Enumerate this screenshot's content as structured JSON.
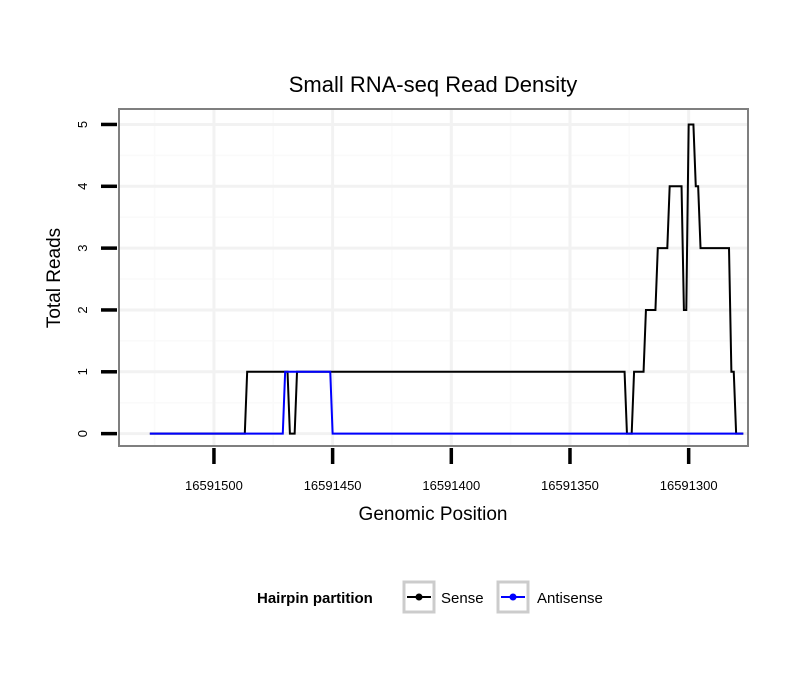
{
  "chart_data": {
    "type": "line",
    "title": "Small RNA-seq Read Density",
    "xlabel": "Genomic Position",
    "ylabel": "Total Reads",
    "x_reversed": true,
    "xlim": [
      16591540,
      16591275
    ],
    "ylim": [
      -0.2,
      5.25
    ],
    "x_ticks": [
      16591500,
      16591450,
      16591400,
      16591350,
      16591300
    ],
    "x_tick_labels": [
      "16591500",
      "16591450",
      "16591400",
      "16591350",
      "16591300"
    ],
    "y_ticks": [
      0,
      1,
      2,
      3,
      4,
      5
    ],
    "y_tick_labels": [
      "0",
      "1",
      "2",
      "3",
      "4",
      "5"
    ],
    "grid": true,
    "legend": {
      "title": "Hairpin partition",
      "position": "bottom",
      "entries": [
        {
          "label": "Sense",
          "color": "#000000"
        },
        {
          "label": "Antisense",
          "color": "#0000ff"
        }
      ]
    },
    "series": [
      {
        "name": "Sense",
        "color": "#000000",
        "x": [
          16591527,
          16591487,
          16591486,
          16591469,
          16591468,
          16591466,
          16591465,
          16591327,
          16591326,
          16591324,
          16591323,
          16591319,
          16591318,
          16591314,
          16591313,
          16591309,
          16591308,
          16591303,
          16591302,
          16591301,
          16591300,
          16591298,
          16591297,
          16591296,
          16591295,
          16591283,
          16591282,
          16591281,
          16591280,
          16591277
        ],
        "y": [
          0,
          0,
          1,
          1,
          0,
          0,
          1,
          1,
          0,
          0,
          1,
          1,
          2,
          2,
          3,
          3,
          4,
          4,
          2,
          2,
          5,
          5,
          4,
          4,
          3,
          3,
          1,
          1,
          0,
          0
        ]
      },
      {
        "name": "Antisense",
        "color": "#0000ff",
        "x": [
          16591527,
          16591471,
          16591470,
          16591451,
          16591450,
          16591277
        ],
        "y": [
          0,
          0,
          1,
          1,
          0,
          0
        ]
      }
    ]
  }
}
